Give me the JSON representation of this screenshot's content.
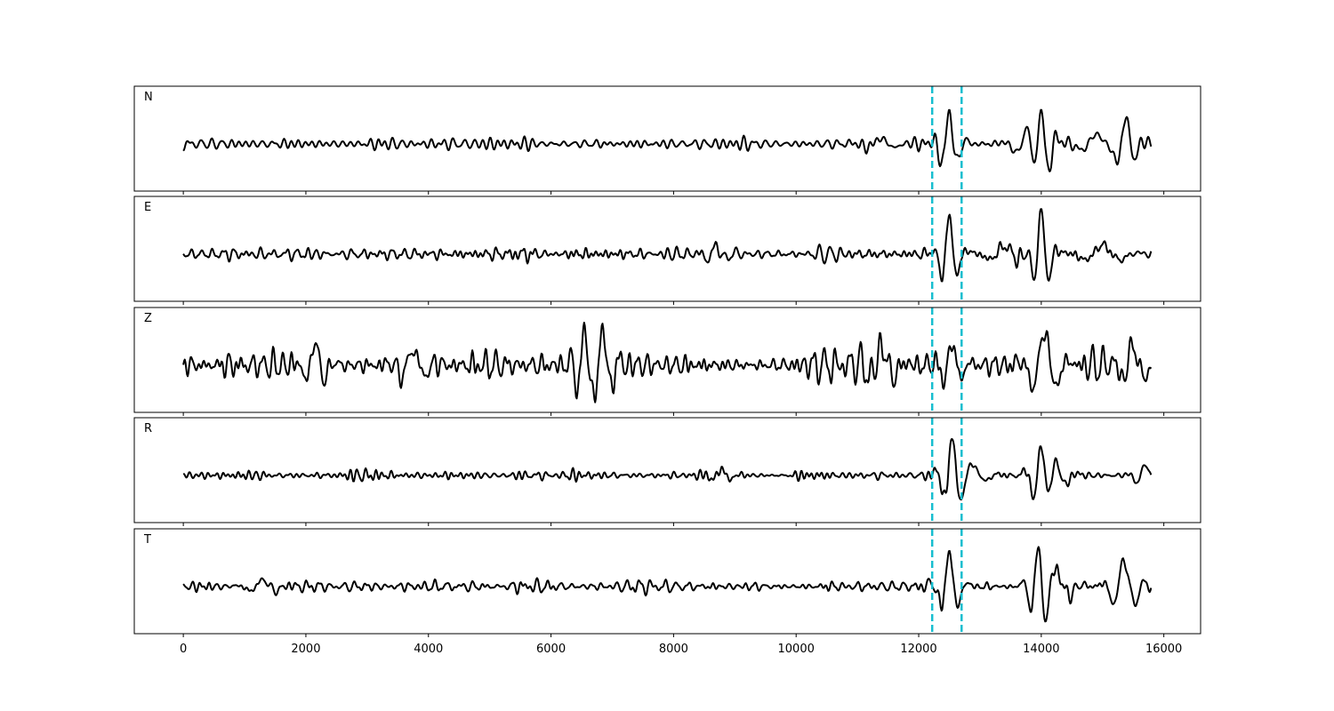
{
  "chart_data": {
    "type": "line",
    "x_ticks": [
      0,
      2000,
      4000,
      6000,
      8000,
      10000,
      12000,
      14000,
      16000
    ],
    "xlim": [
      -800,
      16600
    ],
    "ylim": [
      -1.0,
      1.0
    ],
    "n_samples": 15800,
    "markers": {
      "color": "#17becf",
      "style": "dashed",
      "x": [
        12220,
        12700
      ]
    },
    "line_color": "#000000",
    "grid": false,
    "panels": [
      {
        "label": "N",
        "noise": 0.14,
        "events": [
          {
            "x": 11380,
            "amp": 0.12,
            "w": 240
          },
          {
            "x": 12500,
            "amp": 0.65,
            "w": 140
          },
          {
            "x": 13800,
            "amp": 0.28,
            "w": 220
          },
          {
            "x": 14000,
            "amp": 0.92,
            "w": 130
          },
          {
            "x": 14900,
            "amp": 0.22,
            "w": 260
          },
          {
            "x": 15380,
            "amp": 0.55,
            "w": 150
          }
        ]
      },
      {
        "label": "E",
        "noise": 0.14,
        "events": [
          {
            "x": 8700,
            "amp": 0.2,
            "w": 150
          },
          {
            "x": 12500,
            "amp": 0.75,
            "w": 140
          },
          {
            "x": 13400,
            "amp": 0.18,
            "w": 260
          },
          {
            "x": 14000,
            "amp": 0.92,
            "w": 130
          },
          {
            "x": 15000,
            "amp": 0.2,
            "w": 300
          }
        ]
      },
      {
        "label": "Z",
        "noise": 0.28,
        "events": [
          {
            "x": 2150,
            "amp": 0.5,
            "w": 160
          },
          {
            "x": 3750,
            "amp": 0.35,
            "w": 200
          },
          {
            "x": 6550,
            "amp": 0.75,
            "w": 120
          },
          {
            "x": 6850,
            "amp": 0.85,
            "w": 130
          },
          {
            "x": 11400,
            "amp": 0.4,
            "w": 200
          },
          {
            "x": 12550,
            "amp": 0.5,
            "w": 150
          },
          {
            "x": 14050,
            "amp": 0.75,
            "w": 200
          },
          {
            "x": 15500,
            "amp": 0.45,
            "w": 180
          }
        ]
      },
      {
        "label": "R",
        "noise": 0.1,
        "events": [
          {
            "x": 8780,
            "amp": 0.15,
            "w": 150
          },
          {
            "x": 12550,
            "amp": 0.8,
            "w": 140
          },
          {
            "x": 12900,
            "amp": 0.2,
            "w": 200
          },
          {
            "x": 14000,
            "amp": 0.82,
            "w": 140
          },
          {
            "x": 14200,
            "amp": 0.3,
            "w": 200
          },
          {
            "x": 15700,
            "amp": 0.25,
            "w": 150
          }
        ]
      },
      {
        "label": "T",
        "noise": 0.14,
        "events": [
          {
            "x": 1300,
            "amp": 0.15,
            "w": 220
          },
          {
            "x": 12500,
            "amp": 0.7,
            "w": 150
          },
          {
            "x": 13950,
            "amp": 0.95,
            "w": 130
          },
          {
            "x": 14250,
            "amp": 0.3,
            "w": 220
          },
          {
            "x": 15350,
            "amp": 0.6,
            "w": 180
          }
        ]
      }
    ]
  }
}
